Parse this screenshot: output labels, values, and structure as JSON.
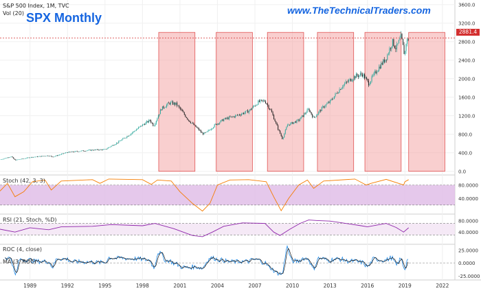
{
  "header": {
    "symbol_line": "S&P 500 Index, 1M, TVC",
    "vol_line": "Vol (20)",
    "title": "SPX Monthly",
    "site": "www.TheTechnicalTraders.com"
  },
  "last_price_label": "2881.4",
  "panes": {
    "stoch_label": "Stoch (42, 3, 3)",
    "rsi_label": "RSI (21, Stoch, %D)",
    "roc_label_1": "ROC (4, close)",
    "roc_label_2": "MA (3, ROC)"
  },
  "colors": {
    "candle_up": "#26a69a",
    "candle_down": "#1b1b1b",
    "highlight_fill": "#f4a7a7",
    "highlight_stroke": "#e05353",
    "stoch_line": "#f57c00",
    "stoch_band": "#e1bee7",
    "rsi_line": "#8e24aa",
    "rsi_band": "#f3e5f5",
    "roc_line": "#1e88e5",
    "roc_ma": "#111111",
    "price_line": "#d32f2f"
  },
  "chart_data": [
    {
      "type": "candlestick",
      "title": "SPX Monthly",
      "series_name": "S&P 500 Index",
      "x_ticks": [
        "1989",
        "1992",
        "1995",
        "1998",
        "2001",
        "2004",
        "2007",
        "2010",
        "2013",
        "2016",
        "2019",
        "2022"
      ],
      "xlim": [
        1986.6,
        2023.0
      ],
      "y_ticks": [
        "0.0",
        "400.0",
        "800.0",
        "1200.0",
        "1600.0",
        "2000.0",
        "2400.0",
        "2800.0",
        "3200.0",
        "3600.0"
      ],
      "ylim": [
        -80,
        3700
      ],
      "last_value": 2881.4,
      "price_path": [
        [
          1986.6,
          250
        ],
        [
          1987.5,
          320
        ],
        [
          1987.8,
          240
        ],
        [
          1989.0,
          300
        ],
        [
          1990.5,
          340
        ],
        [
          1990.8,
          310
        ],
        [
          1992.0,
          410
        ],
        [
          1994.0,
          460
        ],
        [
          1995.0,
          470
        ],
        [
          1996.0,
          620
        ],
        [
          1997.0,
          800
        ],
        [
          1998.0,
          1000
        ],
        [
          1998.6,
          1100
        ],
        [
          1998.9,
          980
        ],
        [
          1999.5,
          1350
        ],
        [
          2000.2,
          1480
        ],
        [
          2000.7,
          1450
        ],
        [
          2001.0,
          1350
        ],
        [
          2001.7,
          1100
        ],
        [
          2002.5,
          900
        ],
        [
          2002.8,
          810
        ],
        [
          2003.1,
          830
        ],
        [
          2003.8,
          1000
        ],
        [
          2004.5,
          1120
        ],
        [
          2005.5,
          1200
        ],
        [
          2006.5,
          1300
        ],
        [
          2007.3,
          1500
        ],
        [
          2007.8,
          1520
        ],
        [
          2008.3,
          1300
        ],
        [
          2008.8,
          950
        ],
        [
          2009.2,
          700
        ],
        [
          2009.6,
          1000
        ],
        [
          2010.5,
          1100
        ],
        [
          2011.3,
          1340
        ],
        [
          2011.7,
          1150
        ],
        [
          2012.5,
          1400
        ],
        [
          2013.0,
          1500
        ],
        [
          2014.0,
          1850
        ],
        [
          2015.0,
          2050
        ],
        [
          2015.6,
          2100
        ],
        [
          2016.1,
          1900
        ],
        [
          2016.8,
          2200
        ],
        [
          2017.5,
          2450
        ],
        [
          2018.0,
          2800
        ],
        [
          2018.3,
          2650
        ],
        [
          2018.7,
          2910
        ],
        [
          2018.98,
          2500
        ],
        [
          2019.1,
          2780
        ],
        [
          2019.3,
          2880
        ]
      ],
      "highlight_periods": [
        [
          1999.3,
          2002.2
        ],
        [
          2003.9,
          2006.8
        ],
        [
          2008.0,
          2010.9
        ],
        [
          2012.0,
          2014.9
        ],
        [
          2015.8,
          2018.7
        ],
        [
          2019.3,
          2022.2
        ]
      ]
    },
    {
      "type": "line",
      "title": "Stoch (42, 3, 3)",
      "y_ticks": [
        "80.0000",
        "40.0000"
      ],
      "ylim": [
        -5,
        108
      ],
      "band": [
        20,
        80
      ],
      "points": [
        [
          1986.6,
          62
        ],
        [
          1987.2,
          85
        ],
        [
          1987.8,
          45
        ],
        [
          1988.5,
          60
        ],
        [
          1989.2,
          90
        ],
        [
          1990.2,
          95
        ],
        [
          1990.7,
          65
        ],
        [
          1991.5,
          92
        ],
        [
          1994.0,
          96
        ],
        [
          1994.6,
          85
        ],
        [
          1995.3,
          98
        ],
        [
          1998.0,
          96
        ],
        [
          1998.7,
          82
        ],
        [
          1999.2,
          95
        ],
        [
          2000.3,
          92
        ],
        [
          2001.0,
          60
        ],
        [
          2002.0,
          25
        ],
        [
          2002.8,
          2
        ],
        [
          2003.4,
          25
        ],
        [
          2004.0,
          80
        ],
        [
          2005.0,
          95
        ],
        [
          2006.5,
          96
        ],
        [
          2007.9,
          90
        ],
        [
          2008.5,
          45
        ],
        [
          2009.1,
          3
        ],
        [
          2009.7,
          40
        ],
        [
          2010.5,
          80
        ],
        [
          2011.2,
          95
        ],
        [
          2011.7,
          70
        ],
        [
          2012.5,
          92
        ],
        [
          2015.0,
          98
        ],
        [
          2015.9,
          80
        ],
        [
          2016.3,
          85
        ],
        [
          2017.5,
          97
        ],
        [
          2018.9,
          80
        ],
        [
          2019.0,
          90
        ],
        [
          2019.3,
          96
        ]
      ]
    },
    {
      "type": "line",
      "title": "RSI (21, Stoch, %D)",
      "y_ticks": [
        "80.0000",
        "40.0000"
      ],
      "ylim": [
        0,
        100
      ],
      "band": [
        30,
        70
      ],
      "points": [
        [
          1986.6,
          50
        ],
        [
          1987.8,
          40
        ],
        [
          1989.0,
          55
        ],
        [
          1990.5,
          48
        ],
        [
          1991.5,
          58
        ],
        [
          1994.0,
          60
        ],
        [
          1995.5,
          66
        ],
        [
          1998.0,
          62
        ],
        [
          1999.0,
          70
        ],
        [
          2000.5,
          52
        ],
        [
          2002.0,
          28
        ],
        [
          2002.8,
          24
        ],
        [
          2003.6,
          40
        ],
        [
          2004.5,
          60
        ],
        [
          2006.0,
          72
        ],
        [
          2007.8,
          70
        ],
        [
          2008.5,
          40
        ],
        [
          2009.0,
          28
        ],
        [
          2009.8,
          50
        ],
        [
          2010.6,
          70
        ],
        [
          2011.3,
          82
        ],
        [
          2012.0,
          80
        ],
        [
          2013.0,
          78
        ],
        [
          2014.0,
          72
        ],
        [
          2015.5,
          62
        ],
        [
          2016.0,
          58
        ],
        [
          2017.5,
          70
        ],
        [
          2018.3,
          56
        ],
        [
          2018.9,
          40
        ],
        [
          2019.3,
          55
        ]
      ]
    },
    {
      "type": "line",
      "title": "ROC (4, close)",
      "y_ticks": [
        "25.0000",
        "0.0000",
        "-25.0000"
      ],
      "ylim": [
        -32,
        35
      ],
      "series_names": [
        "ROC (4, close)",
        "MA (3, ROC)"
      ]
    }
  ]
}
